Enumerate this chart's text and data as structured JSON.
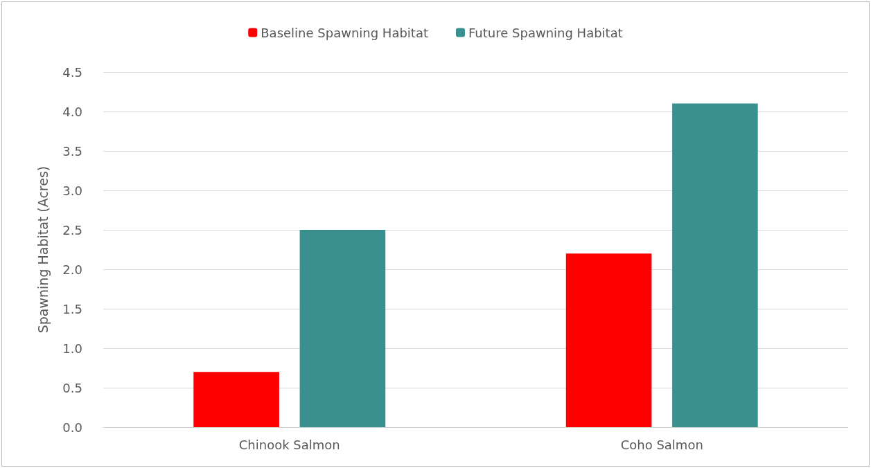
{
  "chart_data": {
    "type": "bar",
    "ylabel": "Spawning Habitat (Acres)",
    "categories": [
      "Chinook Salmon",
      "Coho Salmon"
    ],
    "series": [
      {
        "name": "Baseline Spawning Habitat",
        "color": "#ff0000",
        "values": [
          0.7,
          2.2
        ]
      },
      {
        "name": "Future Spawning Habitat",
        "color": "#3a8f8f",
        "values": [
          2.5,
          4.1
        ]
      }
    ],
    "ylim": [
      0,
      4.5
    ],
    "yticks": [
      {
        "value": 0,
        "label": "0.0"
      },
      {
        "value": 0.5,
        "label": "0.5"
      },
      {
        "value": 1,
        "label": "1.0"
      },
      {
        "value": 1.5,
        "label": "1.5"
      },
      {
        "value": 2,
        "label": "2.0"
      },
      {
        "value": 2.5,
        "label": "2.5"
      },
      {
        "value": 3,
        "label": "3.0"
      },
      {
        "value": 3.5,
        "label": "3.5"
      },
      {
        "value": 4,
        "label": "4.0"
      },
      {
        "value": 4.5,
        "label": "4.5"
      }
    ],
    "grid": "y",
    "legend": "top"
  }
}
